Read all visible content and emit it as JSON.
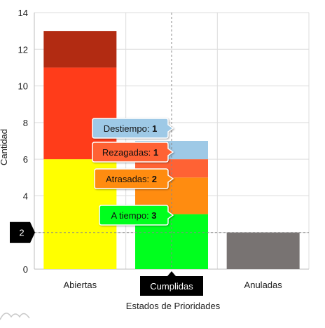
{
  "chart_data": {
    "type": "bar",
    "stacked": true,
    "categories": [
      "Abiertas",
      "Cumplidas",
      "Anuladas"
    ],
    "xlabel": "Estados de Prioridades",
    "ylabel": "Cantidad",
    "ylim": [
      0,
      14
    ],
    "yticks": [
      0,
      2,
      4,
      6,
      8,
      10,
      12,
      14
    ],
    "grid": true,
    "series_abiertas": [
      {
        "value": 6,
        "color": "#ffff00"
      },
      {
        "value": 5,
        "color": "#ff3c1a"
      },
      {
        "value": 2,
        "color": "#b22b12"
      }
    ],
    "series_cumplidas": [
      {
        "name": "A tiempo",
        "value": 3,
        "color": "#00ff1e"
      },
      {
        "name": "Atrasadas",
        "value": 2,
        "color": "#ff8c10"
      },
      {
        "name": "Rezagadas",
        "value": 1,
        "color": "#ff6234"
      },
      {
        "name": "Destiempo",
        "value": 1,
        "color": "#9ec9e6"
      }
    ],
    "series_anuladas": [
      {
        "value": 2,
        "color": "#787372"
      }
    ],
    "crosshair": {
      "y_value": "2",
      "x_category": "Cumplidas"
    }
  }
}
